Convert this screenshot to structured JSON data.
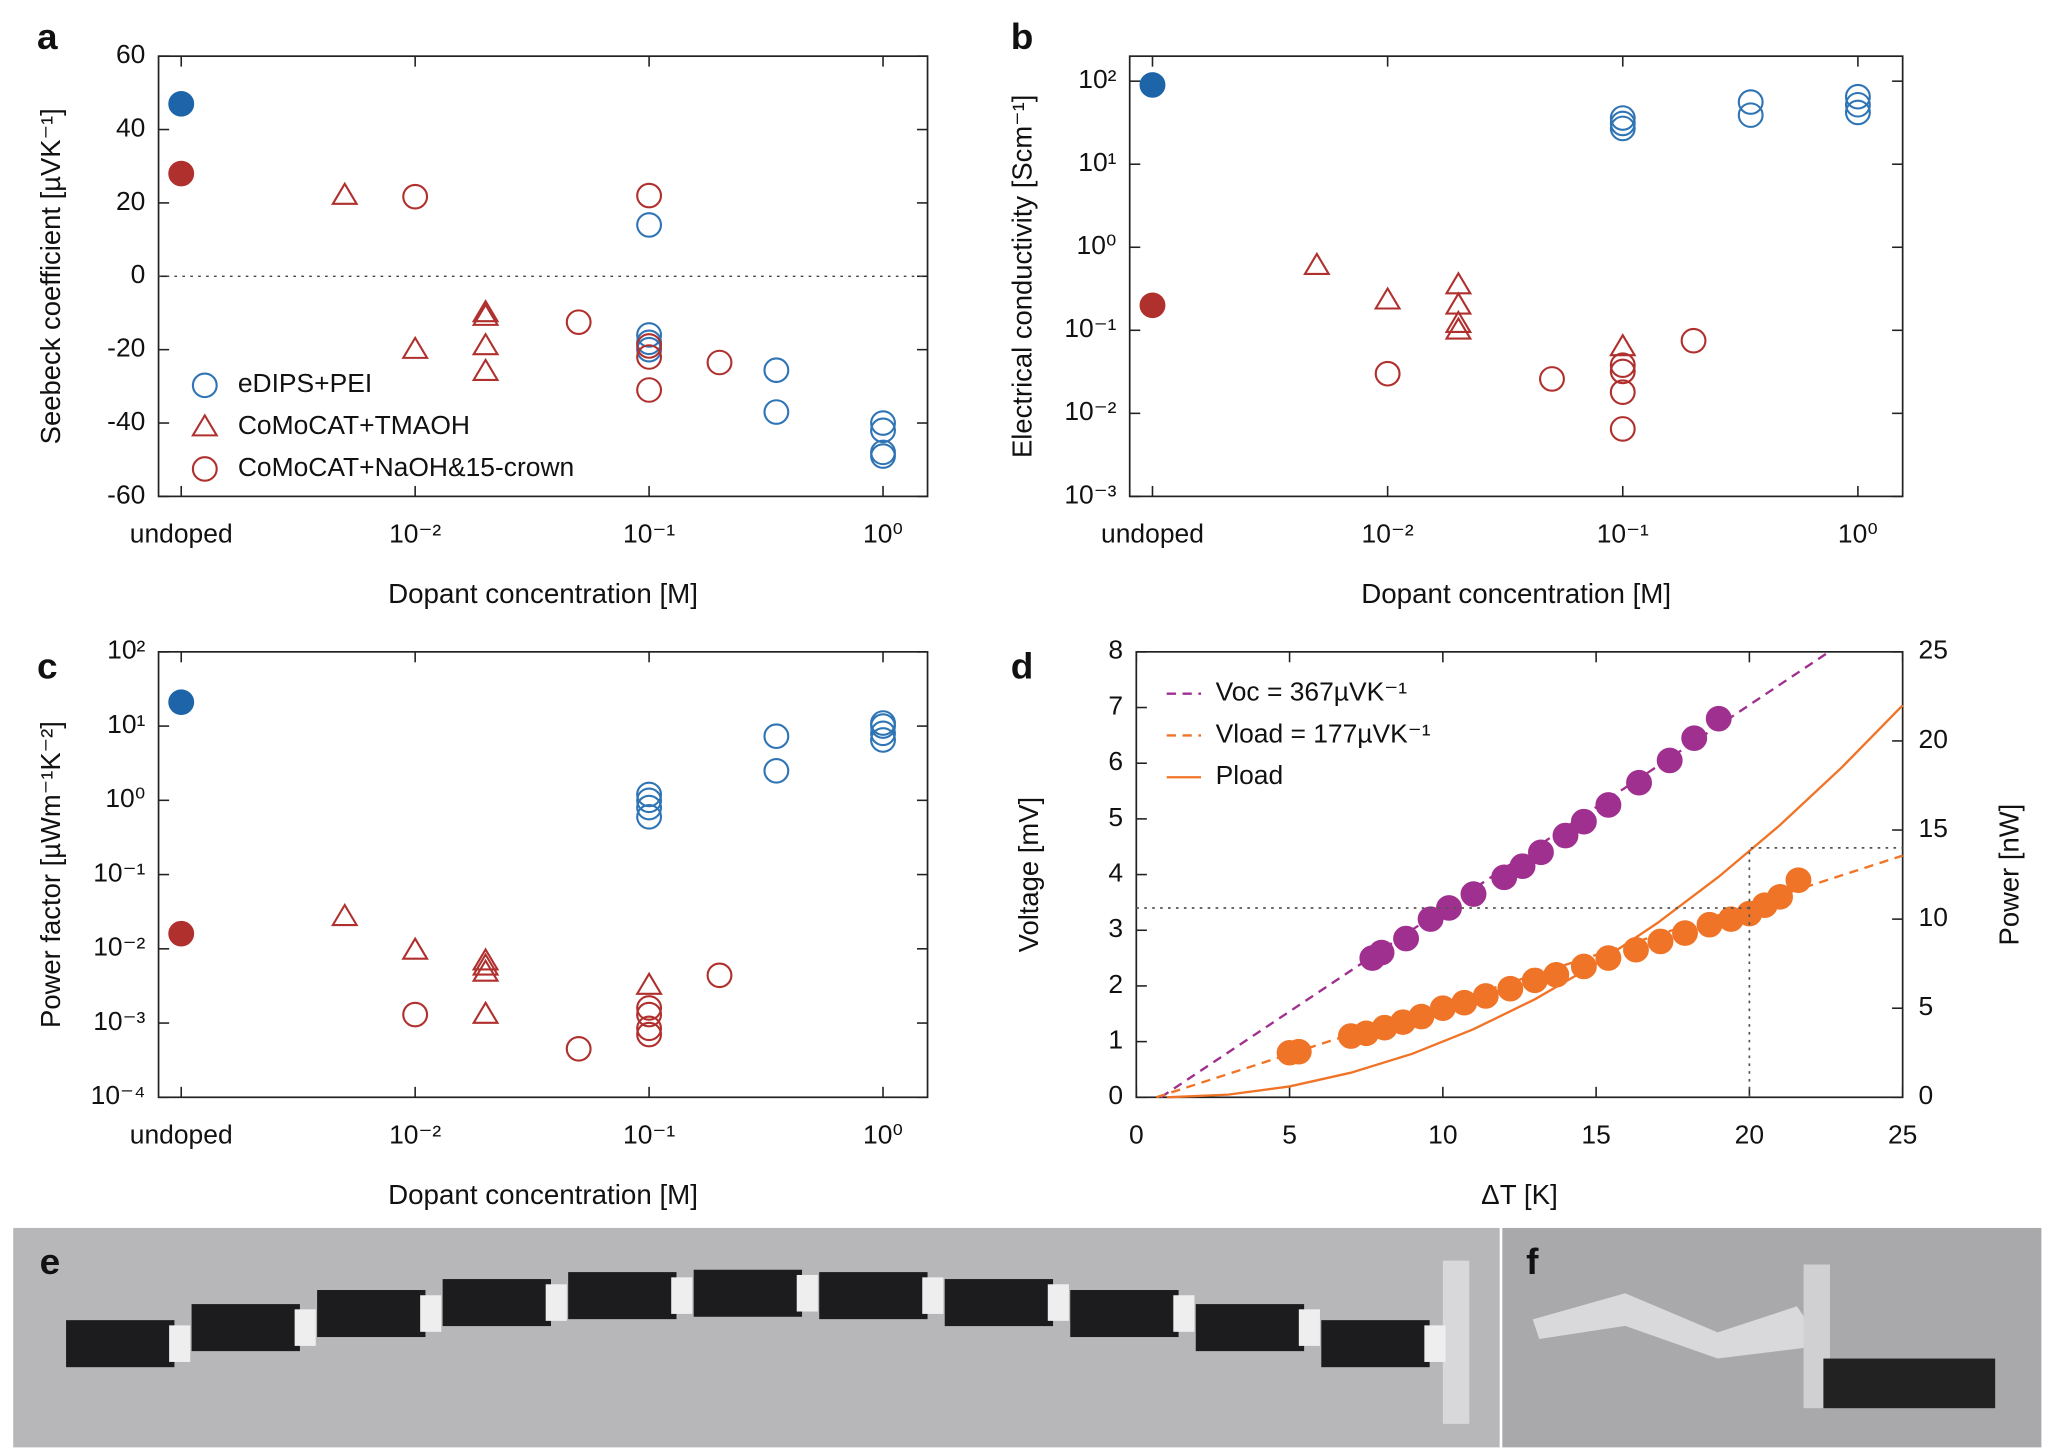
{
  "chart_data": [
    {
      "type": "scatter",
      "panel_label": "a",
      "xlabel": "Dopant concentration [M]",
      "ylabel": "Seebeck coefficient [µVK⁻¹]",
      "xscale": "log",
      "xlim": [
        0.0008,
        1.55
      ],
      "xticks": [
        {
          "value": 0.001,
          "label": "undoped"
        },
        {
          "value": 0.01,
          "label": "10⁻²"
        },
        {
          "value": 0.1,
          "label": "10⁻¹"
        },
        {
          "value": 1,
          "label": "10⁰"
        }
      ],
      "ylim": [
        -60,
        60
      ],
      "yticks": [
        -60,
        -40,
        -20,
        0,
        20,
        40,
        60
      ],
      "hline": 0,
      "legend": "lower left",
      "series": [
        {
          "name": "eDIPS+PEI",
          "color": "#2f75b5",
          "marker": "circle",
          "x": [
            0.1,
            0.1,
            0.1,
            0.1,
            0.35,
            0.35,
            1,
            1,
            1,
            1
          ],
          "values": [
            14,
            -16,
            -18,
            -20,
            -25.6,
            -37,
            -40,
            -42,
            -48,
            -49
          ]
        },
        {
          "name": "CoMoCAT+TMAOH",
          "color": "#b0302e",
          "marker": "triangle",
          "x": [
            0.005,
            0.01,
            0.02,
            0.02,
            0.02,
            0.02
          ],
          "values": [
            22,
            -20,
            -10,
            -11,
            -19,
            -26
          ]
        },
        {
          "name": "CoMoCAT+NaOH&15-crown",
          "color": "#b0302e",
          "marker": "circle",
          "x": [
            0.01,
            0.05,
            0.1,
            0.1,
            0.1,
            0.1,
            0.2
          ],
          "values": [
            21.7,
            -12.5,
            22,
            -19,
            -22,
            -31,
            -23.5
          ]
        },
        {
          "color": "#1e64a8",
          "marker": "filled-circle",
          "x": [
            0.001
          ],
          "values": [
            47
          ]
        },
        {
          "color": "#b0302e",
          "marker": "filled-circle",
          "x": [
            0.001
          ],
          "values": [
            28
          ]
        }
      ]
    },
    {
      "type": "scatter",
      "panel_label": "b",
      "xlabel": "Dopant concentration [M]",
      "ylabel": "Electrical conductivity [Scm⁻¹]",
      "xscale": "log",
      "xlim": [
        0.0008,
        1.55
      ],
      "xticks": [
        {
          "value": 0.001,
          "label": "undoped"
        },
        {
          "value": 0.01,
          "label": "10⁻²"
        },
        {
          "value": 0.1,
          "label": "10⁻¹"
        },
        {
          "value": 1,
          "label": "10⁰"
        }
      ],
      "yscale": "log",
      "ylim": [
        0.001,
        200
      ],
      "yticks": [
        {
          "value": 0.001,
          "label": "10⁻³"
        },
        {
          "value": 0.01,
          "label": "10⁻²"
        },
        {
          "value": 0.1,
          "label": "10⁻¹"
        },
        {
          "value": 1,
          "label": "10⁰"
        },
        {
          "value": 10,
          "label": "10¹"
        },
        {
          "value": 100,
          "label": "10²"
        }
      ],
      "series": [
        {
          "color": "#2f75b5",
          "marker": "circle",
          "x": [
            0.1,
            0.1,
            0.1,
            0.35,
            0.35,
            1,
            1,
            1
          ],
          "values": [
            36,
            31,
            27,
            56,
            39,
            65,
            52,
            42
          ]
        },
        {
          "color": "#b0302e",
          "marker": "triangle",
          "x": [
            0.005,
            0.01,
            0.02,
            0.02,
            0.02,
            0.02,
            0.1
          ],
          "values": [
            0.6,
            0.23,
            0.35,
            0.2,
            0.12,
            0.1,
            0.063
          ]
        },
        {
          "color": "#b0302e",
          "marker": "circle",
          "x": [
            0.01,
            0.05,
            0.1,
            0.1,
            0.1,
            0.1,
            0.2
          ],
          "values": [
            0.03,
            0.026,
            0.038,
            0.032,
            0.018,
            0.0065,
            0.075
          ]
        },
        {
          "color": "#1e64a8",
          "marker": "filled-circle",
          "x": [
            0.001
          ],
          "values": [
            90
          ]
        },
        {
          "color": "#b0302e",
          "marker": "filled-circle",
          "x": [
            0.001
          ],
          "values": [
            0.2
          ]
        }
      ]
    },
    {
      "type": "scatter",
      "panel_label": "c",
      "xlabel": "Dopant concentration [M]",
      "ylabel": "Power factor [µWm⁻¹K⁻²]",
      "xscale": "log",
      "xlim": [
        0.0008,
        1.55
      ],
      "xticks": [
        {
          "value": 0.001,
          "label": "undoped"
        },
        {
          "value": 0.01,
          "label": "10⁻²"
        },
        {
          "value": 0.1,
          "label": "10⁻¹"
        },
        {
          "value": 1,
          "label": "10⁰"
        }
      ],
      "yscale": "log",
      "ylim": [
        0.0001,
        100
      ],
      "yticks": [
        {
          "value": 0.0001,
          "label": "10⁻⁴"
        },
        {
          "value": 0.001,
          "label": "10⁻³"
        },
        {
          "value": 0.01,
          "label": "10⁻²"
        },
        {
          "value": 0.1,
          "label": "10⁻¹"
        },
        {
          "value": 1,
          "label": "10⁰"
        },
        {
          "value": 10,
          "label": "10¹"
        },
        {
          "value": 100,
          "label": "10²"
        }
      ],
      "series": [
        {
          "color": "#2f75b5",
          "marker": "circle",
          "x": [
            0.1,
            0.1,
            0.1,
            0.1,
            0.35,
            0.35,
            1,
            1,
            1,
            1
          ],
          "values": [
            1.2,
            1.0,
            0.8,
            0.6,
            7.3,
            2.5,
            11,
            10,
            8,
            6.5
          ]
        },
        {
          "color": "#b0302e",
          "marker": "triangle",
          "x": [
            0.005,
            0.01,
            0.02,
            0.02,
            0.02,
            0.02,
            0.1
          ],
          "values": [
            0.027,
            0.0095,
            0.0068,
            0.0058,
            0.0048,
            0.0013,
            0.0032
          ]
        },
        {
          "color": "#b0302e",
          "marker": "circle",
          "x": [
            0.01,
            0.05,
            0.1,
            0.1,
            0.1,
            0.1,
            0.2
          ],
          "values": [
            0.0013,
            0.00045,
            0.0016,
            0.0013,
            0.00085,
            0.0007,
            0.0044
          ]
        },
        {
          "color": "#1e64a8",
          "marker": "filled-circle",
          "x": [
            0.001
          ],
          "values": [
            21
          ]
        },
        {
          "color": "#b0302e",
          "marker": "filled-circle",
          "x": [
            0.001
          ],
          "values": [
            0.016
          ]
        }
      ]
    },
    {
      "type": "line",
      "panel_label": "d",
      "xlabel": "ΔT [K]",
      "ylabel": "Voltage [mV]",
      "y2label": "Power [nW]",
      "xlim": [
        0,
        25
      ],
      "xticks": [
        0,
        5,
        10,
        15,
        20,
        25
      ],
      "ylim": [
        0,
        8
      ],
      "yticks": [
        0,
        1,
        2,
        3,
        4,
        5,
        6,
        7,
        8
      ],
      "y2lim": [
        0,
        25
      ],
      "y2ticks": [
        0,
        5,
        10,
        15,
        20,
        25
      ],
      "legend": "upper left",
      "series": [
        {
          "name": "Voc = 367µVK⁻¹",
          "color": "#a0308f",
          "style": "dashed",
          "x": [
            0.8,
            22.6
          ],
          "values": [
            0,
            8
          ]
        },
        {
          "name": "Vload = 177µVK⁻¹",
          "color": "#f07427",
          "style": "dashed",
          "x": [
            0.65,
            25
          ],
          "values": [
            0,
            4.34
          ]
        },
        {
          "name": "Pload",
          "color": "#f07427",
          "style": "solid",
          "axis": "y2",
          "x": [
            1,
            3,
            5,
            7,
            9,
            11,
            13,
            15,
            17,
            19,
            21,
            23,
            25
          ],
          "values": [
            0,
            0.15,
            0.61,
            1.38,
            2.44,
            3.82,
            5.5,
            7.49,
            9.78,
            12.38,
            15.28,
            18.49,
            22.0
          ]
        },
        {
          "color": "#a0308f",
          "style": "markers",
          "x": [
            7.7,
            8.0,
            8.8,
            9.6,
            10.2,
            11.0,
            12.0,
            12.6,
            13.2,
            14.0,
            14.6,
            15.4,
            16.4,
            17.4,
            18.2,
            19.0
          ],
          "values": [
            2.5,
            2.6,
            2.85,
            3.2,
            3.4,
            3.65,
            3.95,
            4.15,
            4.4,
            4.7,
            4.95,
            5.25,
            5.65,
            6.05,
            6.45,
            6.8
          ]
        },
        {
          "color": "#f07427",
          "style": "markers",
          "x": [
            5.0,
            5.3,
            7.0,
            7.5,
            8.1,
            8.7,
            9.3,
            10.0,
            10.7,
            11.4,
            12.2,
            13.0,
            13.7,
            14.6,
            15.4,
            16.3,
            17.1,
            17.9,
            18.7,
            19.4,
            20.0,
            20.5,
            21.0,
            21.6
          ],
          "values": [
            0.8,
            0.82,
            1.1,
            1.15,
            1.25,
            1.35,
            1.45,
            1.6,
            1.7,
            1.82,
            1.95,
            2.1,
            2.2,
            2.35,
            2.5,
            2.65,
            2.8,
            2.95,
            3.1,
            3.2,
            3.3,
            3.45,
            3.6,
            3.9
          ]
        },
        {
          "color": "#555555",
          "style": "dotted",
          "x": [
            0,
            20
          ],
          "values": [
            3.4,
            3.4
          ]
        },
        {
          "color": "#555555",
          "style": "dotted",
          "axis": "y2",
          "x": [
            20,
            20,
            25
          ],
          "values": [
            0,
            14,
            14
          ]
        }
      ]
    }
  ],
  "photos": [
    {
      "label": "e"
    },
    {
      "label": "f"
    }
  ]
}
